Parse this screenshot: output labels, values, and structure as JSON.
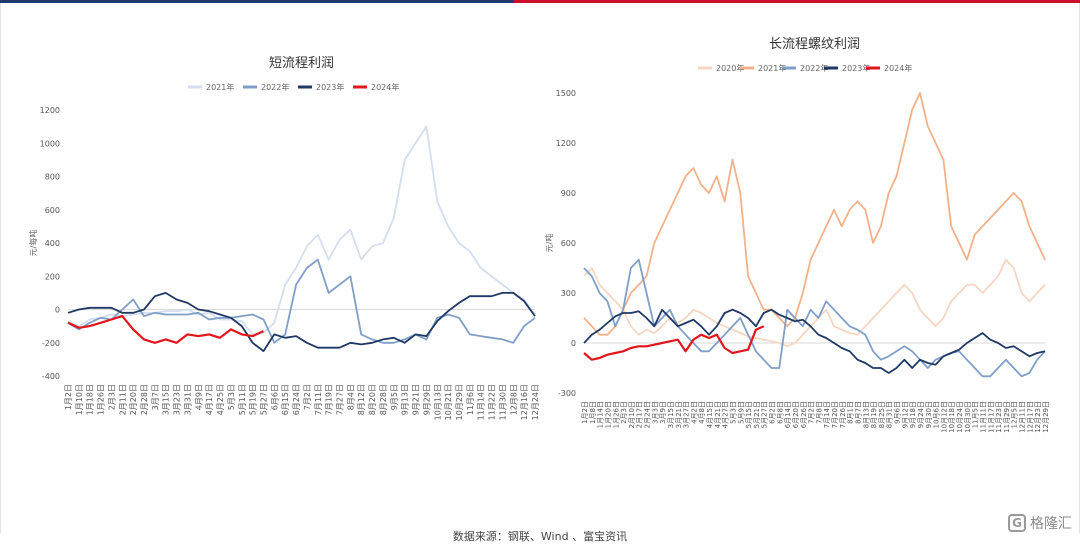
{
  "footer": {
    "source": "数据来源：钢联、Wind 、富宝资讯"
  },
  "logo": {
    "mark": "G",
    "text": "格隆汇"
  },
  "chart_data": [
    {
      "type": "line",
      "title": "短流程利润",
      "ylabel": "元/每吨",
      "ylim": [
        -400,
        1200
      ],
      "yticks": [
        -400,
        -200,
        0,
        200,
        400,
        600,
        800,
        1000,
        1200
      ],
      "grid": false,
      "legend": "top",
      "x_dates": [
        "1月2日",
        "1月10日",
        "1月18日",
        "1月26日",
        "2月3日",
        "2月11日",
        "2月20日",
        "2月28日",
        "3月7日",
        "3月15日",
        "3月23日",
        "3月31日",
        "4月9日",
        "4月17日",
        "4月25日",
        "5月3日",
        "5月11日",
        "5月19日",
        "5月27日",
        "6月6日",
        "6月15日",
        "6月24日",
        "7月2日",
        "7月11日",
        "7月19日",
        "7月27日",
        "8月4日",
        "8月12日",
        "8月20日",
        "8月28日",
        "9月5日",
        "9月13日",
        "9月21日",
        "9月29日",
        "10月13日",
        "10月21日",
        "10月29日",
        "11月6日",
        "11月14日",
        "11月22日",
        "11月30日",
        "12月8日",
        "12月16日",
        "12月24日"
      ],
      "series": [
        {
          "name": "2021年",
          "color": "#d3deee",
          "values": [
            -70,
            -100,
            -60,
            -50,
            -30,
            -40,
            -30,
            -20,
            -20,
            -10,
            -10,
            0,
            -30,
            -20,
            -60,
            -60,
            -70,
            -150,
            -140,
            -80,
            150,
            250,
            380,
            450,
            300,
            420,
            480,
            300,
            380,
            400,
            550,
            900,
            1000,
            1100,
            650,
            500,
            400,
            350,
            250,
            200,
            150,
            100,
            60,
            -30
          ]
        },
        {
          "name": "2022年",
          "color": "#7f9fc8",
          "values": [
            -80,
            -120,
            -80,
            -50,
            -60,
            0,
            60,
            -40,
            -20,
            -30,
            -30,
            -30,
            -20,
            -60,
            -50,
            -50,
            -40,
            -30,
            -60,
            -200,
            -150,
            150,
            250,
            300,
            100,
            150,
            200,
            -150,
            -180,
            -200,
            -200,
            -180,
            -150,
            -180,
            -50,
            -30,
            -50,
            -150,
            -160,
            -170,
            -180,
            -200,
            -100,
            -50
          ]
        },
        {
          "name": "2023年",
          "color": "#1f3864",
          "values": [
            -20,
            0,
            10,
            10,
            10,
            -20,
            -20,
            0,
            80,
            100,
            60,
            40,
            0,
            -10,
            -30,
            -50,
            -100,
            -200,
            -250,
            -150,
            -170,
            -160,
            -200,
            -230,
            -230,
            -230,
            -200,
            -210,
            -200,
            -180,
            -170,
            -200,
            -150,
            -160,
            -70,
            -10,
            40,
            80,
            80,
            80,
            100,
            100,
            50,
            -40
          ]
        },
        {
          "name": "2024年",
          "color": "#e0161c",
          "values": [
            -80,
            -110,
            -100,
            -80,
            -60,
            -40,
            -120,
            -180,
            -200,
            -180,
            -200,
            -150,
            -160,
            -150,
            -170,
            -120,
            -150,
            -160,
            -130
          ]
        }
      ]
    },
    {
      "type": "line",
      "title": "长流程螺纹利润",
      "ylabel": "元/吨",
      "ylim": [
        -300,
        1500
      ],
      "yticks": [
        -300,
        0,
        300,
        600,
        900,
        1200,
        1500
      ],
      "grid": false,
      "legend": "top",
      "x_dates": [
        "1月2日",
        "1月8日",
        "1月14日",
        "1月20日",
        "1月26日",
        "2月3日",
        "2月10日",
        "2月17日",
        "2月24日",
        "3月3日",
        "3月9日",
        "3月15日",
        "3月21日",
        "3月27日",
        "4月2日",
        "4月8日",
        "4月15日",
        "4月21日",
        "4月27日",
        "5月3日",
        "5月9日",
        "5月15日",
        "5月21日",
        "5月27日",
        "6月2日",
        "6月8日",
        "6月14日",
        "6月20日",
        "6月26日",
        "7月2日",
        "7月8日",
        "7月14日",
        "7月20日",
        "7月26日",
        "8月1日",
        "8月7日",
        "8月13日",
        "8月19日",
        "8月25日",
        "8月31日",
        "9月6日",
        "9月12日",
        "9月18日",
        "9月24日",
        "9月30日",
        "10月6日",
        "10月12日",
        "10月18日",
        "10月24日",
        "10月30日",
        "11月5日",
        "11月11日",
        "11月17日",
        "11月23日",
        "11月29日",
        "12月5日",
        "12月11日",
        "12月17日",
        "12月23日",
        "12月29日"
      ],
      "series": [
        {
          "name": "2020年",
          "color": "#f6d6c2",
          "values": [
            400,
            450,
            350,
            300,
            250,
            200,
            100,
            50,
            80,
            60,
            100,
            150,
            120,
            150,
            200,
            180,
            150,
            120,
            100,
            80,
            60,
            40,
            30,
            20,
            10,
            0,
            -20,
            0,
            50,
            100,
            150,
            200,
            100,
            80,
            60,
            50,
            100,
            150,
            200,
            250,
            300,
            350,
            300,
            200,
            150,
            100,
            150,
            250,
            300,
            350,
            350,
            300,
            350,
            400,
            500,
            450,
            300,
            250,
            300,
            350
          ]
        },
        {
          "name": "2021年",
          "color": "#f3b18a",
          "values": [
            150,
            100,
            50,
            50,
            100,
            200,
            300,
            350,
            400,
            600,
            700,
            800,
            900,
            1000,
            1050,
            950,
            900,
            1000,
            850,
            1100,
            900,
            400,
            300,
            200,
            200,
            150,
            100,
            150,
            300,
            500,
            600,
            700,
            800,
            700,
            800,
            850,
            800,
            600,
            700,
            900,
            1000,
            1200,
            1400,
            1500,
            1300,
            1200,
            1100,
            700,
            600,
            500,
            650,
            700,
            750,
            800,
            850,
            900,
            850,
            700,
            600,
            500
          ]
        },
        {
          "name": "2022年",
          "color": "#7f9fc8",
          "values": [
            450,
            400,
            300,
            250,
            100,
            200,
            450,
            500,
            300,
            100,
            150,
            200,
            100,
            50,
            0,
            -50,
            -50,
            0,
            50,
            100,
            150,
            50,
            -50,
            -100,
            -150,
            -150,
            200,
            150,
            100,
            200,
            150,
            250,
            200,
            150,
            100,
            80,
            50,
            -50,
            -100,
            -80,
            -50,
            -20,
            -50,
            -100,
            -150,
            -100,
            -80,
            -60,
            -50,
            -100,
            -150,
            -200,
            -200,
            -150,
            -100,
            -150,
            -200,
            -180,
            -100,
            -50
          ]
        },
        {
          "name": "2023年",
          "color": "#1f3864",
          "values": [
            0,
            50,
            80,
            120,
            160,
            180,
            180,
            190,
            150,
            100,
            200,
            150,
            100,
            120,
            140,
            100,
            50,
            100,
            180,
            200,
            180,
            150,
            100,
            180,
            200,
            170,
            150,
            130,
            140,
            100,
            50,
            30,
            0,
            -30,
            -50,
            -100,
            -120,
            -150,
            -150,
            -180,
            -150,
            -100,
            -150,
            -100,
            -120,
            -130,
            -80,
            -60,
            -40,
            0,
            30,
            60,
            20,
            0,
            -30,
            -20,
            -50,
            -80,
            -60,
            -50
          ]
        },
        {
          "name": "2024年",
          "color": "#e0161c",
          "values": [
            -60,
            -100,
            -90,
            -70,
            -60,
            -50,
            -30,
            -20,
            -20,
            -10,
            0,
            10,
            20,
            -50,
            20,
            50,
            30,
            50,
            -30,
            -60,
            -50,
            -40,
            80,
            100
          ]
        }
      ]
    }
  ]
}
